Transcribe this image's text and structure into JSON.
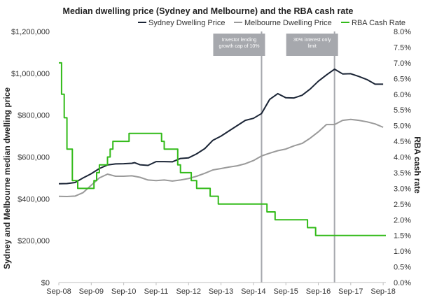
{
  "chart_data": {
    "type": "line",
    "title": "Median dwelling price (Sydney and Melbourne) and the RBA cash rate",
    "ylabel": "Sydney and Melbourne median dwelling price",
    "y2label": "RBA cash rate",
    "ylim": [
      0,
      1200000
    ],
    "y2lim": [
      0,
      8.0
    ],
    "x_domain": [
      "2008-09",
      "2018-10"
    ],
    "grid": false,
    "legend_position": "top-right",
    "colors": {
      "sydney": "#1b2536",
      "melbourne": "#9a9a9a",
      "rba": "#33bb1a",
      "annotation_box": "#a6a8ad",
      "annotation_line": "#a6a8ad"
    },
    "y_ticks": [
      "$0",
      "$200,000",
      "$400,000",
      "$600,000",
      "$800,000",
      "$1,000,000",
      "$1,200,000"
    ],
    "y_tick_values": [
      0,
      200000,
      400000,
      600000,
      800000,
      1000000,
      1200000
    ],
    "y2_ticks": [
      "0.0%",
      "0.5%",
      "1.0%",
      "1.5%",
      "2.0%",
      "2.5%",
      "3.0%",
      "3.5%",
      "4.0%",
      "4.5%",
      "5.0%",
      "5.5%",
      "6.0%",
      "6.5%",
      "7.0%",
      "7.5%",
      "8.0%"
    ],
    "y2_tick_values": [
      0,
      0.5,
      1.0,
      1.5,
      2.0,
      2.5,
      3.0,
      3.5,
      4.0,
      4.5,
      5.0,
      5.5,
      6.0,
      6.5,
      7.0,
      7.5,
      8.0
    ],
    "x_ticks": [
      {
        "date": "2008-09",
        "label": "Sep-08"
      },
      {
        "date": "2009-09",
        "label": "Sep-09"
      },
      {
        "date": "2010-09",
        "label": "Sep-10"
      },
      {
        "date": "2011-09",
        "label": "Sep-11"
      },
      {
        "date": "2012-09",
        "label": "Sep-12"
      },
      {
        "date": "2013-09",
        "label": "Sep-13"
      },
      {
        "date": "2014-09",
        "label": "Sep-14"
      },
      {
        "date": "2015-09",
        "label": "Sep-15"
      },
      {
        "date": "2016-09",
        "label": "Sep-16"
      },
      {
        "date": "2017-09",
        "label": "Sep-17"
      },
      {
        "date": "2018-09",
        "label": "Sep-18"
      }
    ],
    "series": [
      {
        "name": "Sydney Dwelling Price",
        "axis": "left",
        "points": [
          [
            "2008-09",
            472000
          ],
          [
            "2008-12",
            473000
          ],
          [
            "2009-03",
            478000
          ],
          [
            "2009-06",
            500000
          ],
          [
            "2009-09",
            520000
          ],
          [
            "2009-12",
            545000
          ],
          [
            "2010-03",
            562000
          ],
          [
            "2010-06",
            567000
          ],
          [
            "2010-09",
            568000
          ],
          [
            "2010-12",
            570000
          ],
          [
            "2011-01",
            573000
          ],
          [
            "2011-03",
            563000
          ],
          [
            "2011-06",
            560000
          ],
          [
            "2011-09",
            578000
          ],
          [
            "2011-12",
            578000
          ],
          [
            "2012-03",
            577000
          ],
          [
            "2012-06",
            593000
          ],
          [
            "2012-09",
            596000
          ],
          [
            "2012-12",
            615000
          ],
          [
            "2013-03",
            640000
          ],
          [
            "2013-06",
            680000
          ],
          [
            "2013-09",
            700000
          ],
          [
            "2013-12",
            725000
          ],
          [
            "2014-03",
            750000
          ],
          [
            "2014-06",
            775000
          ],
          [
            "2014-09",
            785000
          ],
          [
            "2014-12",
            808000
          ],
          [
            "2015-03",
            875000
          ],
          [
            "2015-06",
            903000
          ],
          [
            "2015-09",
            883000
          ],
          [
            "2015-12",
            882000
          ],
          [
            "2016-03",
            895000
          ],
          [
            "2016-06",
            925000
          ],
          [
            "2016-09",
            962000
          ],
          [
            "2016-12",
            992000
          ],
          [
            "2017-03",
            1020000
          ],
          [
            "2017-06",
            997000
          ],
          [
            "2017-09",
            998000
          ],
          [
            "2017-12",
            985000
          ],
          [
            "2018-03",
            970000
          ],
          [
            "2018-06",
            948000
          ],
          [
            "2018-09",
            948000
          ]
        ]
      },
      {
        "name": "Melbourne Dwelling Price",
        "axis": "left",
        "points": [
          [
            "2008-09",
            412000
          ],
          [
            "2008-12",
            411000
          ],
          [
            "2009-03",
            413000
          ],
          [
            "2009-06",
            430000
          ],
          [
            "2009-09",
            465000
          ],
          [
            "2009-12",
            500000
          ],
          [
            "2010-03",
            518000
          ],
          [
            "2010-06",
            508000
          ],
          [
            "2010-09",
            508000
          ],
          [
            "2010-12",
            510000
          ],
          [
            "2011-03",
            503000
          ],
          [
            "2011-06",
            490000
          ],
          [
            "2011-09",
            487000
          ],
          [
            "2011-12",
            490000
          ],
          [
            "2012-03",
            485000
          ],
          [
            "2012-06",
            490000
          ],
          [
            "2012-09",
            497000
          ],
          [
            "2012-12",
            508000
          ],
          [
            "2013-03",
            522000
          ],
          [
            "2013-06",
            538000
          ],
          [
            "2013-09",
            545000
          ],
          [
            "2013-12",
            552000
          ],
          [
            "2014-03",
            558000
          ],
          [
            "2014-06",
            568000
          ],
          [
            "2014-09",
            583000
          ],
          [
            "2014-12",
            605000
          ],
          [
            "2015-03",
            618000
          ],
          [
            "2015-06",
            630000
          ],
          [
            "2015-09",
            638000
          ],
          [
            "2015-12",
            653000
          ],
          [
            "2016-03",
            665000
          ],
          [
            "2016-06",
            690000
          ],
          [
            "2016-09",
            720000
          ],
          [
            "2016-12",
            755000
          ],
          [
            "2017-03",
            755000
          ],
          [
            "2017-06",
            775000
          ],
          [
            "2017-09",
            780000
          ],
          [
            "2017-12",
            775000
          ],
          [
            "2018-03",
            768000
          ],
          [
            "2018-06",
            758000
          ],
          [
            "2018-09",
            742000
          ]
        ]
      },
      {
        "name": "RBA Cash Rate",
        "axis": "right",
        "step": true,
        "points": [
          [
            "2008-09",
            7.0
          ],
          [
            "2008-10",
            6.0
          ],
          [
            "2008-11",
            5.25
          ],
          [
            "2008-12",
            4.25
          ],
          [
            "2009-02",
            3.25
          ],
          [
            "2009-04",
            3.0
          ],
          [
            "2009-10",
            3.25
          ],
          [
            "2009-11",
            3.5
          ],
          [
            "2009-12",
            3.75
          ],
          [
            "2010-03",
            4.0
          ],
          [
            "2010-04",
            4.25
          ],
          [
            "2010-05",
            4.5
          ],
          [
            "2010-11",
            4.75
          ],
          [
            "2011-11",
            4.5
          ],
          [
            "2011-12",
            4.25
          ],
          [
            "2012-05",
            3.75
          ],
          [
            "2012-06",
            3.5
          ],
          [
            "2012-10",
            3.25
          ],
          [
            "2012-12",
            3.0
          ],
          [
            "2013-05",
            2.75
          ],
          [
            "2013-08",
            2.5
          ],
          [
            "2015-02",
            2.25
          ],
          [
            "2015-05",
            2.0
          ],
          [
            "2016-05",
            1.75
          ],
          [
            "2016-08",
            1.5
          ],
          [
            "2018-10",
            1.5
          ]
        ]
      }
    ],
    "annotations": [
      {
        "text": "Investor lending growth cap of 10%",
        "lines": [
          "Investor lending",
          "growth cap of 10%"
        ],
        "date": "2014-12"
      },
      {
        "text": "30% interest only limit",
        "lines": [
          "30% interest only",
          "limit"
        ],
        "date": "2017-03"
      }
    ]
  }
}
